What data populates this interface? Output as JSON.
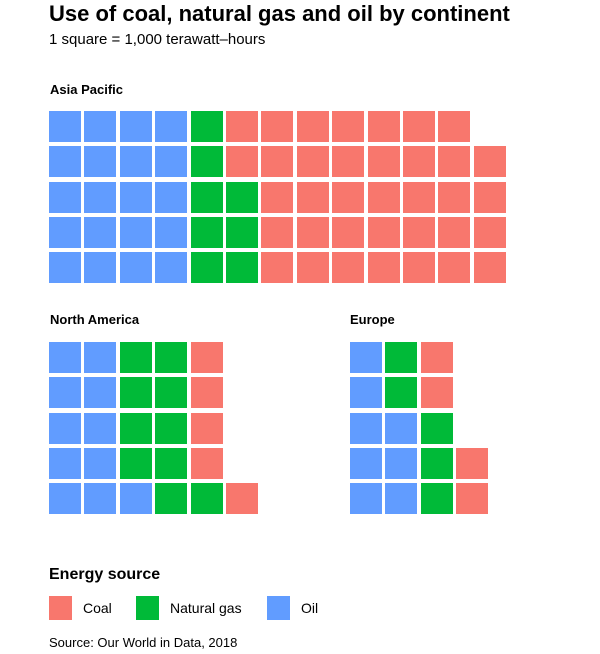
{
  "title": "Use of coal, natural gas and oil by continent",
  "subtitle": "1 square = 1,000 terawatt–hours",
  "colors": {
    "coal": "#f8776d",
    "gas": "#00ba38",
    "oil": "#619cff"
  },
  "chart_data": {
    "type": "waffle",
    "unit": "1 square = 1,000 terawatt-hours",
    "series_order": [
      "oil",
      "gas",
      "coal"
    ],
    "groups": [
      {
        "name": "Asia Pacific",
        "values": {
          "oil": 20,
          "gas": 8,
          "coal": 36
        }
      },
      {
        "name": "North America",
        "values": {
          "oil": 11,
          "gas": 10,
          "coal": 5
        }
      },
      {
        "name": "Europe",
        "values": {
          "oil": 8,
          "gas": 5,
          "coal": 4
        }
      }
    ]
  },
  "legend": {
    "title": "Energy source",
    "items": [
      {
        "key": "coal",
        "label": "Coal"
      },
      {
        "key": "gas",
        "label": "Natural gas"
      },
      {
        "key": "oil",
        "label": "Oil"
      }
    ]
  },
  "source": "Source: Our World in Data, 2018"
}
